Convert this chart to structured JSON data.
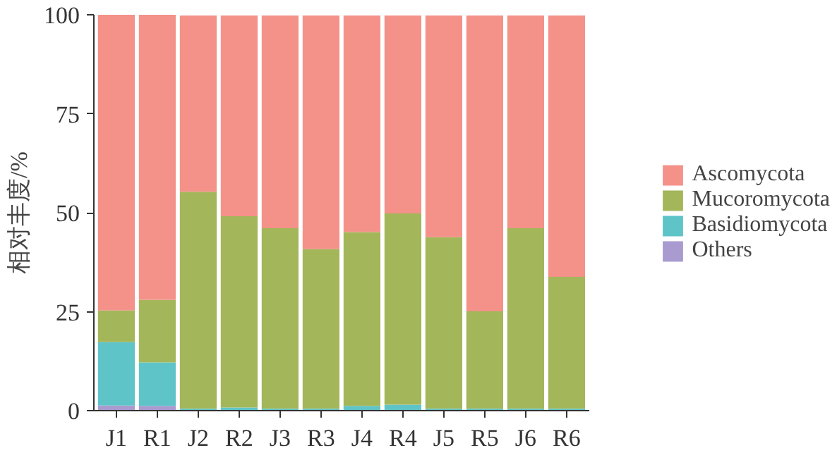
{
  "chart_data": {
    "type": "bar",
    "stacked": true,
    "ylabel": "相对丰度/%",
    "categories": [
      "J1",
      "R1",
      "J2",
      "R2",
      "J3",
      "R3",
      "J4",
      "R4",
      "J5",
      "R5",
      "J6",
      "R6"
    ],
    "series": [
      {
        "name": "Others",
        "color": "#a99bd0",
        "values": [
          1.3,
          1.2,
          null,
          null,
          null,
          null,
          null,
          null,
          null,
          null,
          null,
          null
        ]
      },
      {
        "name": "Basidiomycota",
        "color": "#5fc4c8",
        "values": [
          16,
          11,
          0.5,
          0.8,
          0.5,
          0.5,
          1.2,
          1.5,
          0.5,
          0.5,
          0.5,
          0.5
        ]
      },
      {
        "name": "Mucoromycota",
        "color": "#a3b65a",
        "values": [
          8,
          15.8,
          54.8,
          48.3,
          45.6,
          40.3,
          43.9,
          48.3,
          43.3,
          24.6,
          45.6,
          33.3
        ]
      },
      {
        "name": "Ascomycota",
        "color": "#f4928a",
        "values": [
          74.7,
          72,
          44.5,
          50.7,
          53.7,
          59,
          54.7,
          50,
          56,
          74.7,
          53.7,
          66
        ]
      }
    ],
    "ylim": [
      0,
      100
    ],
    "yticks": [
      0,
      25,
      50,
      75,
      100
    ],
    "grid": false,
    "legend": "right"
  }
}
